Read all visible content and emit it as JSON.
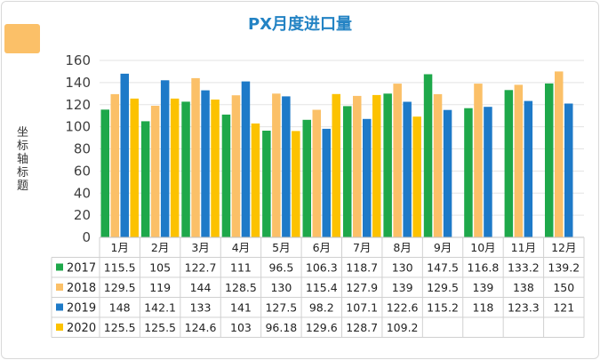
{
  "chart_data": {
    "type": "bar",
    "title": "PX月度进口量",
    "ylabel": "坐标轴标题",
    "xlabel": "",
    "ylim": [
      0,
      160
    ],
    "yticks": [
      0,
      20,
      40,
      60,
      80,
      100,
      120,
      140,
      160
    ],
    "grid": true,
    "legend": "data-table-below",
    "categories": [
      "1月",
      "2月",
      "3月",
      "4月",
      "5月",
      "6月",
      "7月",
      "8月",
      "9月",
      "10月",
      "11月",
      "12月"
    ],
    "series": [
      {
        "name": "2017",
        "color": "#1ea84a",
        "values": [
          115.5,
          105,
          122.7,
          111,
          96.5,
          106.3,
          118.7,
          130,
          147.5,
          116.8,
          133.2,
          139.2
        ]
      },
      {
        "name": "2018",
        "color": "#fbc068",
        "values": [
          129.5,
          119,
          144,
          128.5,
          130,
          115.4,
          127.9,
          139,
          129.5,
          139,
          138,
          150
        ]
      },
      {
        "name": "2019",
        "color": "#1e7ac8",
        "values": [
          148,
          142.1,
          133,
          141,
          127.5,
          98.2,
          107.1,
          122.6,
          115.2,
          118,
          123.3,
          121
        ]
      },
      {
        "name": "2020",
        "color": "#fcc200",
        "values": [
          125.5,
          125.5,
          124.6,
          103,
          96.18,
          129.6,
          128.7,
          109.2,
          null,
          null,
          null,
          null
        ]
      }
    ]
  }
}
